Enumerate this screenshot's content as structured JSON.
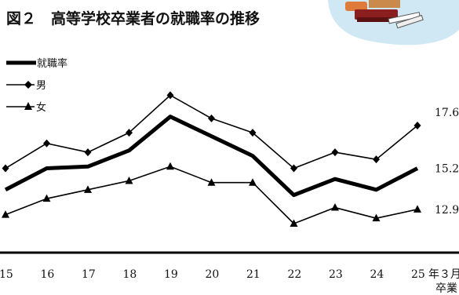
{
  "chart_data": {
    "type": "line",
    "title": "図２　高等学校卒業者の就職率の推移",
    "x": [
      "15",
      "16",
      "17",
      "18",
      "19",
      "20",
      "21",
      "22",
      "23",
      "24",
      "25"
    ],
    "x_suffix": "年３月",
    "x_sub": "卒業",
    "xlabel": "",
    "ylabel": "",
    "ylim": [
      11.0,
      19.8
    ],
    "grid": false,
    "legend": "top-left",
    "series": [
      {
        "name": "就職率",
        "style": "bold",
        "marker": "none",
        "values": [
          14.0,
          15.2,
          15.3,
          16.2,
          18.1,
          17.0,
          15.9,
          13.7,
          14.6,
          14.0,
          15.2
        ],
        "end_label": "15.2"
      },
      {
        "name": "男",
        "style": "thin",
        "marker": "diamond",
        "values": [
          15.2,
          16.6,
          16.1,
          17.2,
          19.3,
          18.0,
          17.2,
          15.2,
          16.1,
          15.7,
          17.6
        ],
        "end_label": "17.6"
      },
      {
        "name": "女",
        "style": "thin",
        "marker": "triangle",
        "values": [
          12.6,
          13.5,
          14.0,
          14.5,
          15.3,
          14.4,
          14.4,
          12.1,
          13.0,
          12.4,
          12.9
        ],
        "end_label": "12.9"
      }
    ]
  }
}
